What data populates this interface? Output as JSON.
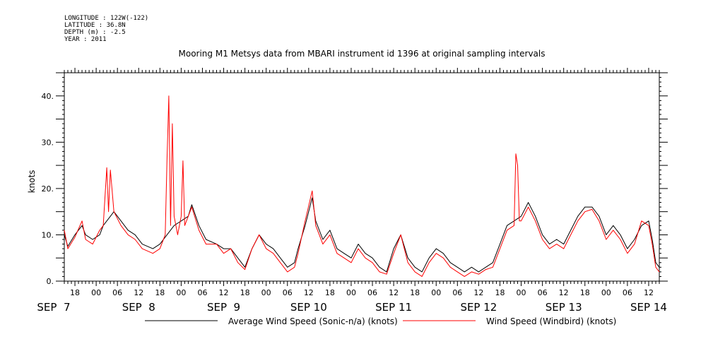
{
  "header": {
    "longitude": "LONGITUDE : 122W(-122)",
    "latitude": "LATITUDE : 36.8N",
    "depth": "DEPTH (m) : -2.5",
    "year": "YEAR : 2011"
  },
  "chart_data": {
    "type": "line",
    "title": "Mooring M1 Metsys data from MBARI instrument id 1396 at original sampling intervals",
    "ylabel": "knots",
    "xlabel": "",
    "xlim": [
      "2011-09-07T15:00",
      "2011-09-14T15:00"
    ],
    "ylim": [
      0,
      45
    ],
    "yticks": [
      0,
      10,
      20,
      30,
      40
    ],
    "ytick_labels": [
      "0.",
      "10.",
      "20.",
      "30.",
      "40."
    ],
    "x_hour_ticks": [
      {
        "t": "2011-09-07T18:00",
        "label": "18"
      },
      {
        "t": "2011-09-08T00:00",
        "label": "00"
      },
      {
        "t": "2011-09-08T06:00",
        "label": "06"
      },
      {
        "t": "2011-09-08T12:00",
        "label": "12"
      },
      {
        "t": "2011-09-08T18:00",
        "label": "18"
      },
      {
        "t": "2011-09-09T00:00",
        "label": "00"
      },
      {
        "t": "2011-09-09T06:00",
        "label": "06"
      },
      {
        "t": "2011-09-09T12:00",
        "label": "12"
      },
      {
        "t": "2011-09-09T18:00",
        "label": "18"
      },
      {
        "t": "2011-09-10T00:00",
        "label": "00"
      },
      {
        "t": "2011-09-10T06:00",
        "label": "06"
      },
      {
        "t": "2011-09-10T12:00",
        "label": "12"
      },
      {
        "t": "2011-09-10T18:00",
        "label": "18"
      },
      {
        "t": "2011-09-11T00:00",
        "label": "00"
      },
      {
        "t": "2011-09-11T06:00",
        "label": "06"
      },
      {
        "t": "2011-09-11T12:00",
        "label": "12"
      },
      {
        "t": "2011-09-11T18:00",
        "label": "18"
      },
      {
        "t": "2011-09-12T00:00",
        "label": "00"
      },
      {
        "t": "2011-09-12T06:00",
        "label": "06"
      },
      {
        "t": "2011-09-12T12:00",
        "label": "12"
      },
      {
        "t": "2011-09-12T18:00",
        "label": "18"
      },
      {
        "t": "2011-09-13T00:00",
        "label": "00"
      },
      {
        "t": "2011-09-13T06:00",
        "label": "06"
      },
      {
        "t": "2011-09-13T12:00",
        "label": "12"
      },
      {
        "t": "2011-09-13T18:00",
        "label": "18"
      },
      {
        "t": "2011-09-14T00:00",
        "label": "00"
      },
      {
        "t": "2011-09-14T06:00",
        "label": "06"
      },
      {
        "t": "2011-09-14T12:00",
        "label": "12"
      }
    ],
    "x_day_labels": [
      {
        "t": "2011-09-07T12:00",
        "label": "SEP  7"
      },
      {
        "t": "2011-09-08T12:00",
        "label": "SEP  8"
      },
      {
        "t": "2011-09-09T12:00",
        "label": "SEP  9"
      },
      {
        "t": "2011-09-10T12:00",
        "label": "SEP 10"
      },
      {
        "t": "2011-09-11T12:00",
        "label": "SEP 11"
      },
      {
        "t": "2011-09-12T12:00",
        "label": "SEP 12"
      },
      {
        "t": "2011-09-13T12:00",
        "label": "SEP 13"
      },
      {
        "t": "2011-09-14T12:00",
        "label": "SEP 14"
      }
    ],
    "grid": false,
    "legend_position": "bottom",
    "series": [
      {
        "name": "Average Wind Speed (Sonic-n/a) (knots)",
        "color": "#000000",
        "points": [
          [
            "2011-09-07T15:00",
            10
          ],
          [
            "2011-09-07T16:00",
            7.5
          ],
          [
            "2011-09-07T18:00",
            10
          ],
          [
            "2011-09-07T20:00",
            12
          ],
          [
            "2011-09-07T21:00",
            10
          ],
          [
            "2011-09-07T23:00",
            9
          ],
          [
            "2011-09-08T01:00",
            10
          ],
          [
            "2011-09-08T02:00",
            12
          ],
          [
            "2011-09-08T04:00",
            14
          ],
          [
            "2011-09-08T05:00",
            15
          ],
          [
            "2011-09-08T07:00",
            13
          ],
          [
            "2011-09-08T09:00",
            11
          ],
          [
            "2011-09-08T11:00",
            10
          ],
          [
            "2011-09-08T13:00",
            8
          ],
          [
            "2011-09-08T16:00",
            7
          ],
          [
            "2011-09-08T18:00",
            8
          ],
          [
            "2011-09-08T20:00",
            10
          ],
          [
            "2011-09-08T22:00",
            12
          ],
          [
            "2011-09-09T00:00",
            13
          ],
          [
            "2011-09-09T02:00",
            14
          ],
          [
            "2011-09-09T03:00",
            16.5
          ],
          [
            "2011-09-09T05:00",
            12
          ],
          [
            "2011-09-09T07:00",
            9
          ],
          [
            "2011-09-09T10:00",
            8
          ],
          [
            "2011-09-09T12:00",
            7
          ],
          [
            "2011-09-09T14:00",
            7
          ],
          [
            "2011-09-09T16:00",
            5
          ],
          [
            "2011-09-09T18:00",
            3
          ],
          [
            "2011-09-09T20:00",
            7
          ],
          [
            "2011-09-09T22:00",
            10
          ],
          [
            "2011-09-10T00:00",
            8
          ],
          [
            "2011-09-10T02:00",
            7
          ],
          [
            "2011-09-10T04:00",
            5
          ],
          [
            "2011-09-10T06:00",
            3
          ],
          [
            "2011-09-10T08:00",
            4
          ],
          [
            "2011-09-10T09:00",
            7
          ],
          [
            "2011-09-10T11:00",
            12
          ],
          [
            "2011-09-10T13:00",
            18
          ],
          [
            "2011-09-10T14:00",
            13
          ],
          [
            "2011-09-10T16:00",
            9
          ],
          [
            "2011-09-10T18:00",
            11
          ],
          [
            "2011-09-10T20:00",
            7
          ],
          [
            "2011-09-10T22:00",
            6
          ],
          [
            "2011-09-11T00:00",
            5
          ],
          [
            "2011-09-11T02:00",
            8
          ],
          [
            "2011-09-11T04:00",
            6
          ],
          [
            "2011-09-11T06:00",
            5
          ],
          [
            "2011-09-11T08:00",
            3
          ],
          [
            "2011-09-11T10:00",
            2
          ],
          [
            "2011-09-11T12:00",
            7
          ],
          [
            "2011-09-11T14:00",
            10
          ],
          [
            "2011-09-11T16:00",
            5
          ],
          [
            "2011-09-11T18:00",
            3
          ],
          [
            "2011-09-11T20:00",
            2
          ],
          [
            "2011-09-11T22:00",
            5
          ],
          [
            "2011-09-12T00:00",
            7
          ],
          [
            "2011-09-12T02:00",
            6
          ],
          [
            "2011-09-12T04:00",
            4
          ],
          [
            "2011-09-12T06:00",
            3
          ],
          [
            "2011-09-12T08:00",
            2
          ],
          [
            "2011-09-12T10:00",
            3
          ],
          [
            "2011-09-12T12:00",
            2
          ],
          [
            "2011-09-12T14:00",
            3
          ],
          [
            "2011-09-12T16:00",
            4
          ],
          [
            "2011-09-12T18:00",
            8
          ],
          [
            "2011-09-12T20:00",
            12
          ],
          [
            "2011-09-12T22:00",
            13
          ],
          [
            "2011-09-13T00:00",
            14
          ],
          [
            "2011-09-13T02:00",
            17
          ],
          [
            "2011-09-13T04:00",
            14
          ],
          [
            "2011-09-13T06:00",
            10
          ],
          [
            "2011-09-13T08:00",
            8
          ],
          [
            "2011-09-13T10:00",
            9
          ],
          [
            "2011-09-13T12:00",
            8
          ],
          [
            "2011-09-13T14:00",
            11
          ],
          [
            "2011-09-13T16:00",
            14
          ],
          [
            "2011-09-13T18:00",
            16
          ],
          [
            "2011-09-13T20:00",
            16
          ],
          [
            "2011-09-13T22:00",
            14
          ],
          [
            "2011-09-14T00:00",
            10
          ],
          [
            "2011-09-14T02:00",
            12
          ],
          [
            "2011-09-14T04:00",
            10
          ],
          [
            "2011-09-14T06:00",
            7
          ],
          [
            "2011-09-14T08:00",
            9
          ],
          [
            "2011-09-14T10:00",
            12
          ],
          [
            "2011-09-14T12:00",
            13
          ],
          [
            "2011-09-14T13:00",
            9
          ],
          [
            "2011-09-14T14:00",
            4
          ],
          [
            "2011-09-14T15:00",
            3
          ]
        ]
      },
      {
        "name": "Wind Speed (Windbird) (knots)",
        "color": "#ff0000",
        "points": [
          [
            "2011-09-07T15:00",
            11
          ],
          [
            "2011-09-07T16:00",
            7
          ],
          [
            "2011-09-07T18:00",
            9.5
          ],
          [
            "2011-09-07T20:00",
            13
          ],
          [
            "2011-09-07T21:00",
            9
          ],
          [
            "2011-09-07T23:00",
            8
          ],
          [
            "2011-09-08T01:00",
            11
          ],
          [
            "2011-09-08T02:00",
            12
          ],
          [
            "2011-09-08T03:00",
            24.5
          ],
          [
            "2011-09-08T03:30",
            15
          ],
          [
            "2011-09-08T04:00",
            24
          ],
          [
            "2011-09-08T05:00",
            15
          ],
          [
            "2011-09-08T07:00",
            12
          ],
          [
            "2011-09-08T09:00",
            10
          ],
          [
            "2011-09-08T11:00",
            9
          ],
          [
            "2011-09-08T13:00",
            7
          ],
          [
            "2011-09-08T16:00",
            6
          ],
          [
            "2011-09-08T18:00",
            7
          ],
          [
            "2011-09-08T19:30",
            10
          ],
          [
            "2011-09-08T20:00",
            26
          ],
          [
            "2011-09-08T20:30",
            40
          ],
          [
            "2011-09-08T21:00",
            12
          ],
          [
            "2011-09-08T21:30",
            34
          ],
          [
            "2011-09-08T22:00",
            14
          ],
          [
            "2011-09-08T23:00",
            10
          ],
          [
            "2011-09-09T00:00",
            14
          ],
          [
            "2011-09-09T00:30",
            26
          ],
          [
            "2011-09-09T01:00",
            12
          ],
          [
            "2011-09-09T02:00",
            14
          ],
          [
            "2011-09-09T03:00",
            16
          ],
          [
            "2011-09-09T05:00",
            11
          ],
          [
            "2011-09-09T07:00",
            8
          ],
          [
            "2011-09-09T10:00",
            8
          ],
          [
            "2011-09-09T12:00",
            6
          ],
          [
            "2011-09-09T14:00",
            7
          ],
          [
            "2011-09-09T16:00",
            4
          ],
          [
            "2011-09-09T18:00",
            2.5
          ],
          [
            "2011-09-09T20:00",
            7
          ],
          [
            "2011-09-09T22:00",
            10
          ],
          [
            "2011-09-10T00:00",
            7
          ],
          [
            "2011-09-10T02:00",
            6
          ],
          [
            "2011-09-10T04:00",
            4
          ],
          [
            "2011-09-10T06:00",
            2
          ],
          [
            "2011-09-10T08:00",
            3
          ],
          [
            "2011-09-10T09:00",
            6
          ],
          [
            "2011-09-10T11:00",
            13
          ],
          [
            "2011-09-10T13:00",
            19.5
          ],
          [
            "2011-09-10T14:00",
            12
          ],
          [
            "2011-09-10T16:00",
            8
          ],
          [
            "2011-09-10T18:00",
            10
          ],
          [
            "2011-09-10T20:00",
            6
          ],
          [
            "2011-09-10T22:00",
            5
          ],
          [
            "2011-09-11T00:00",
            4
          ],
          [
            "2011-09-11T02:00",
            7
          ],
          [
            "2011-09-11T04:00",
            5
          ],
          [
            "2011-09-11T06:00",
            4
          ],
          [
            "2011-09-11T08:00",
            2
          ],
          [
            "2011-09-11T10:00",
            1.5
          ],
          [
            "2011-09-11T12:00",
            6
          ],
          [
            "2011-09-11T14:00",
            10
          ],
          [
            "2011-09-11T16:00",
            4
          ],
          [
            "2011-09-11T18:00",
            2
          ],
          [
            "2011-09-11T20:00",
            1
          ],
          [
            "2011-09-11T22:00",
            4
          ],
          [
            "2011-09-12T00:00",
            6
          ],
          [
            "2011-09-12T02:00",
            5
          ],
          [
            "2011-09-12T04:00",
            3
          ],
          [
            "2011-09-12T06:00",
            2
          ],
          [
            "2011-09-12T08:00",
            1
          ],
          [
            "2011-09-12T10:00",
            2
          ],
          [
            "2011-09-12T12:00",
            1.5
          ],
          [
            "2011-09-12T14:00",
            2.5
          ],
          [
            "2011-09-12T16:00",
            3
          ],
          [
            "2011-09-12T18:00",
            7
          ],
          [
            "2011-09-12T20:00",
            11
          ],
          [
            "2011-09-12T22:00",
            12
          ],
          [
            "2011-09-12T22:30",
            27.5
          ],
          [
            "2011-09-12T23:00",
            25
          ],
          [
            "2011-09-12T23:30",
            13
          ],
          [
            "2011-09-13T00:00",
            13
          ],
          [
            "2011-09-13T02:00",
            16
          ],
          [
            "2011-09-13T04:00",
            13
          ],
          [
            "2011-09-13T06:00",
            9
          ],
          [
            "2011-09-13T08:00",
            7
          ],
          [
            "2011-09-13T10:00",
            8
          ],
          [
            "2011-09-13T12:00",
            7
          ],
          [
            "2011-09-13T14:00",
            10
          ],
          [
            "2011-09-13T16:00",
            13
          ],
          [
            "2011-09-13T18:00",
            15
          ],
          [
            "2011-09-13T20:00",
            15.5
          ],
          [
            "2011-09-13T22:00",
            13
          ],
          [
            "2011-09-14T00:00",
            9
          ],
          [
            "2011-09-14T02:00",
            11
          ],
          [
            "2011-09-14T04:00",
            9
          ],
          [
            "2011-09-14T06:00",
            6
          ],
          [
            "2011-09-14T08:00",
            8
          ],
          [
            "2011-09-14T10:00",
            13
          ],
          [
            "2011-09-14T12:00",
            12
          ],
          [
            "2011-09-14T13:00",
            8
          ],
          [
            "2011-09-14T14:00",
            3
          ],
          [
            "2011-09-14T15:00",
            2
          ]
        ]
      }
    ]
  }
}
